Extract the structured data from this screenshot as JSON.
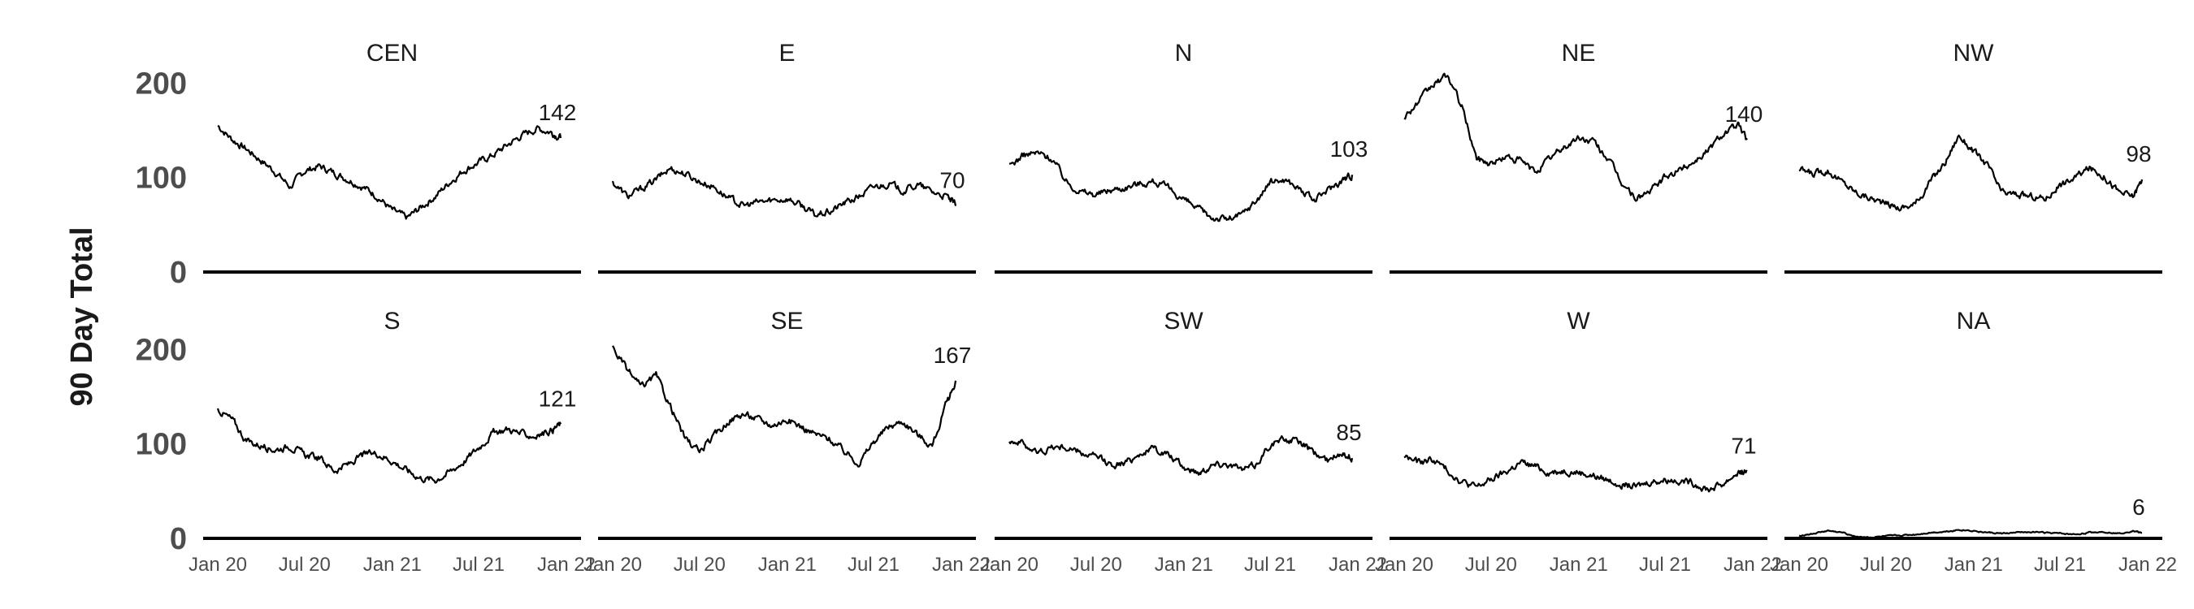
{
  "chart_data": {
    "type": "line",
    "ylabel": "90 Day Total",
    "xlabel": "",
    "ylim": [
      0,
      215
    ],
    "yticks": [
      0,
      100,
      200
    ],
    "xticks": [
      "Jan 20",
      "Jul 20",
      "Jan 21",
      "Jul 21",
      "Jan 22"
    ],
    "x_range": [
      "2020-01-01",
      "2022-01-01"
    ],
    "grid": false,
    "legend": "none",
    "panels": [
      {
        "name": "CEN",
        "end_label": "142",
        "points": [
          [
            "2020-01-01",
            155
          ],
          [
            "2020-02-01",
            140
          ],
          [
            "2020-03-01",
            130
          ],
          [
            "2020-04-01",
            118
          ],
          [
            "2020-05-01",
            106
          ],
          [
            "2020-06-01",
            90
          ],
          [
            "2020-07-01",
            107
          ],
          [
            "2020-08-01",
            112
          ],
          [
            "2020-09-01",
            105
          ],
          [
            "2020-10-01",
            98
          ],
          [
            "2020-11-01",
            90
          ],
          [
            "2020-12-01",
            80
          ],
          [
            "2021-01-01",
            65
          ],
          [
            "2021-02-01",
            57
          ],
          [
            "2021-03-01",
            68
          ],
          [
            "2021-04-01",
            80
          ],
          [
            "2021-05-01",
            95
          ],
          [
            "2021-06-01",
            108
          ],
          [
            "2021-07-01",
            116
          ],
          [
            "2021-08-01",
            124
          ],
          [
            "2021-09-01",
            135
          ],
          [
            "2021-10-01",
            145
          ],
          [
            "2021-11-01",
            152
          ],
          [
            "2021-12-01",
            148
          ],
          [
            "2021-12-20",
            142
          ]
        ]
      },
      {
        "name": "E",
        "end_label": "70",
        "points": [
          [
            "2020-01-01",
            95
          ],
          [
            "2020-02-01",
            80
          ],
          [
            "2020-03-01",
            88
          ],
          [
            "2020-04-01",
            98
          ],
          [
            "2020-05-01",
            110
          ],
          [
            "2020-06-01",
            104
          ],
          [
            "2020-07-01",
            96
          ],
          [
            "2020-08-01",
            90
          ],
          [
            "2020-09-01",
            78
          ],
          [
            "2020-10-01",
            70
          ],
          [
            "2020-11-01",
            74
          ],
          [
            "2020-12-01",
            76
          ],
          [
            "2021-01-01",
            78
          ],
          [
            "2021-02-01",
            70
          ],
          [
            "2021-03-01",
            60
          ],
          [
            "2021-04-01",
            64
          ],
          [
            "2021-05-01",
            73
          ],
          [
            "2021-06-01",
            80
          ],
          [
            "2021-07-01",
            90
          ],
          [
            "2021-08-01",
            94
          ],
          [
            "2021-09-01",
            86
          ],
          [
            "2021-10-01",
            92
          ],
          [
            "2021-11-01",
            85
          ],
          [
            "2021-12-01",
            80
          ],
          [
            "2021-12-20",
            70
          ]
        ]
      },
      {
        "name": "N",
        "end_label": "103",
        "points": [
          [
            "2020-01-01",
            112
          ],
          [
            "2020-02-01",
            124
          ],
          [
            "2020-03-01",
            126
          ],
          [
            "2020-04-01",
            120
          ],
          [
            "2020-05-01",
            95
          ],
          [
            "2020-06-01",
            85
          ],
          [
            "2020-07-01",
            82
          ],
          [
            "2020-08-01",
            87
          ],
          [
            "2020-09-01",
            90
          ],
          [
            "2020-10-01",
            94
          ],
          [
            "2020-11-01",
            96
          ],
          [
            "2020-12-01",
            88
          ],
          [
            "2021-01-01",
            77
          ],
          [
            "2021-02-01",
            66
          ],
          [
            "2021-03-01",
            58
          ],
          [
            "2021-04-01",
            56
          ],
          [
            "2021-05-01",
            60
          ],
          [
            "2021-06-01",
            75
          ],
          [
            "2021-07-01",
            95
          ],
          [
            "2021-08-01",
            98
          ],
          [
            "2021-09-01",
            88
          ],
          [
            "2021-10-01",
            75
          ],
          [
            "2021-11-01",
            88
          ],
          [
            "2021-12-01",
            98
          ],
          [
            "2021-12-20",
            103
          ]
        ]
      },
      {
        "name": "NE",
        "end_label": "140",
        "points": [
          [
            "2020-01-01",
            165
          ],
          [
            "2020-02-01",
            180
          ],
          [
            "2020-03-01",
            198
          ],
          [
            "2020-04-01",
            208
          ],
          [
            "2020-05-01",
            175
          ],
          [
            "2020-06-01",
            120
          ],
          [
            "2020-07-01",
            115
          ],
          [
            "2020-08-01",
            122
          ],
          [
            "2020-09-01",
            118
          ],
          [
            "2020-10-01",
            106
          ],
          [
            "2020-11-01",
            120
          ],
          [
            "2020-12-01",
            132
          ],
          [
            "2021-01-01",
            142
          ],
          [
            "2021-02-01",
            138
          ],
          [
            "2021-03-01",
            122
          ],
          [
            "2021-04-01",
            95
          ],
          [
            "2021-05-01",
            78
          ],
          [
            "2021-06-01",
            86
          ],
          [
            "2021-07-01",
            100
          ],
          [
            "2021-08-01",
            108
          ],
          [
            "2021-09-01",
            118
          ],
          [
            "2021-10-01",
            130
          ],
          [
            "2021-11-01",
            148
          ],
          [
            "2021-12-01",
            155
          ],
          [
            "2021-12-20",
            140
          ]
        ]
      },
      {
        "name": "NW",
        "end_label": "98",
        "points": [
          [
            "2020-01-01",
            108
          ],
          [
            "2020-02-01",
            104
          ],
          [
            "2020-03-01",
            108
          ],
          [
            "2020-04-01",
            95
          ],
          [
            "2020-05-01",
            84
          ],
          [
            "2020-06-01",
            78
          ],
          [
            "2020-07-01",
            72
          ],
          [
            "2020-08-01",
            68
          ],
          [
            "2020-09-01",
            72
          ],
          [
            "2020-10-01",
            95
          ],
          [
            "2020-11-01",
            115
          ],
          [
            "2020-12-01",
            145
          ],
          [
            "2021-01-01",
            128
          ],
          [
            "2021-02-01",
            112
          ],
          [
            "2021-03-01",
            84
          ],
          [
            "2021-04-01",
            82
          ],
          [
            "2021-05-01",
            80
          ],
          [
            "2021-06-01",
            78
          ],
          [
            "2021-07-01",
            92
          ],
          [
            "2021-08-01",
            100
          ],
          [
            "2021-09-01",
            110
          ],
          [
            "2021-10-01",
            102
          ],
          [
            "2021-11-01",
            85
          ],
          [
            "2021-12-01",
            80
          ],
          [
            "2021-12-20",
            98
          ]
        ]
      },
      {
        "name": "S",
        "end_label": "121",
        "points": [
          [
            "2020-01-01",
            137
          ],
          [
            "2020-02-01",
            125
          ],
          [
            "2020-03-01",
            103
          ],
          [
            "2020-04-01",
            98
          ],
          [
            "2020-05-01",
            94
          ],
          [
            "2020-06-01",
            98
          ],
          [
            "2020-07-01",
            88
          ],
          [
            "2020-08-01",
            85
          ],
          [
            "2020-09-01",
            72
          ],
          [
            "2020-10-01",
            78
          ],
          [
            "2020-11-01",
            88
          ],
          [
            "2020-12-01",
            90
          ],
          [
            "2021-01-01",
            82
          ],
          [
            "2021-02-01",
            72
          ],
          [
            "2021-03-01",
            64
          ],
          [
            "2021-04-01",
            62
          ],
          [
            "2021-05-01",
            70
          ],
          [
            "2021-06-01",
            82
          ],
          [
            "2021-07-01",
            96
          ],
          [
            "2021-08-01",
            112
          ],
          [
            "2021-09-01",
            116
          ],
          [
            "2021-10-01",
            110
          ],
          [
            "2021-11-01",
            108
          ],
          [
            "2021-12-01",
            115
          ],
          [
            "2021-12-20",
            121
          ]
        ]
      },
      {
        "name": "SE",
        "end_label": "167",
        "points": [
          [
            "2020-01-01",
            202
          ],
          [
            "2020-02-01",
            178
          ],
          [
            "2020-03-01",
            160
          ],
          [
            "2020-04-01",
            172
          ],
          [
            "2020-05-01",
            140
          ],
          [
            "2020-06-01",
            105
          ],
          [
            "2020-07-01",
            92
          ],
          [
            "2020-08-01",
            108
          ],
          [
            "2020-09-01",
            125
          ],
          [
            "2020-10-01",
            132
          ],
          [
            "2020-11-01",
            126
          ],
          [
            "2020-12-01",
            120
          ],
          [
            "2021-01-01",
            126
          ],
          [
            "2021-02-01",
            118
          ],
          [
            "2021-03-01",
            110
          ],
          [
            "2021-04-01",
            105
          ],
          [
            "2021-05-01",
            92
          ],
          [
            "2021-06-01",
            80
          ],
          [
            "2021-07-01",
            102
          ],
          [
            "2021-08-01",
            118
          ],
          [
            "2021-09-01",
            124
          ],
          [
            "2021-10-01",
            110
          ],
          [
            "2021-11-01",
            98
          ],
          [
            "2021-12-01",
            142
          ],
          [
            "2021-12-20",
            167
          ]
        ]
      },
      {
        "name": "SW",
        "end_label": "85",
        "points": [
          [
            "2020-01-01",
            105
          ],
          [
            "2020-02-01",
            100
          ],
          [
            "2020-03-01",
            90
          ],
          [
            "2020-04-01",
            97
          ],
          [
            "2020-05-01",
            96
          ],
          [
            "2020-06-01",
            90
          ],
          [
            "2020-07-01",
            86
          ],
          [
            "2020-08-01",
            78
          ],
          [
            "2020-09-01",
            80
          ],
          [
            "2020-10-01",
            90
          ],
          [
            "2020-11-01",
            95
          ],
          [
            "2020-12-01",
            88
          ],
          [
            "2021-01-01",
            75
          ],
          [
            "2021-02-01",
            70
          ],
          [
            "2021-03-01",
            78
          ],
          [
            "2021-04-01",
            80
          ],
          [
            "2021-05-01",
            72
          ],
          [
            "2021-06-01",
            78
          ],
          [
            "2021-07-01",
            100
          ],
          [
            "2021-08-01",
            105
          ],
          [
            "2021-09-01",
            102
          ],
          [
            "2021-10-01",
            90
          ],
          [
            "2021-11-01",
            82
          ],
          [
            "2021-12-01",
            92
          ],
          [
            "2021-12-20",
            85
          ]
        ]
      },
      {
        "name": "W",
        "end_label": "71",
        "points": [
          [
            "2020-01-01",
            87
          ],
          [
            "2020-02-01",
            80
          ],
          [
            "2020-03-01",
            84
          ],
          [
            "2020-04-01",
            72
          ],
          [
            "2020-05-01",
            60
          ],
          [
            "2020-06-01",
            54
          ],
          [
            "2020-07-01",
            62
          ],
          [
            "2020-08-01",
            70
          ],
          [
            "2020-09-01",
            80
          ],
          [
            "2020-10-01",
            76
          ],
          [
            "2020-11-01",
            70
          ],
          [
            "2020-12-01",
            72
          ],
          [
            "2021-01-01",
            70
          ],
          [
            "2021-02-01",
            66
          ],
          [
            "2021-03-01",
            62
          ],
          [
            "2021-04-01",
            58
          ],
          [
            "2021-05-01",
            54
          ],
          [
            "2021-06-01",
            60
          ],
          [
            "2021-07-01",
            62
          ],
          [
            "2021-08-01",
            62
          ],
          [
            "2021-09-01",
            58
          ],
          [
            "2021-10-01",
            52
          ],
          [
            "2021-11-01",
            58
          ],
          [
            "2021-12-01",
            70
          ],
          [
            "2021-12-20",
            71
          ]
        ]
      },
      {
        "name": "NA",
        "end_label": "6",
        "points": [
          [
            "2020-01-01",
            3
          ],
          [
            "2020-02-01",
            5
          ],
          [
            "2020-03-01",
            8
          ],
          [
            "2020-04-01",
            6
          ],
          [
            "2020-05-01",
            2
          ],
          [
            "2020-06-01",
            1
          ],
          [
            "2020-07-01",
            2
          ],
          [
            "2020-08-01",
            3
          ],
          [
            "2020-09-01",
            4
          ],
          [
            "2020-10-01",
            6
          ],
          [
            "2020-11-01",
            7
          ],
          [
            "2020-12-01",
            9
          ],
          [
            "2021-01-01",
            8
          ],
          [
            "2021-02-01",
            6
          ],
          [
            "2021-03-01",
            5
          ],
          [
            "2021-04-01",
            6
          ],
          [
            "2021-05-01",
            7
          ],
          [
            "2021-06-01",
            6
          ],
          [
            "2021-07-01",
            5
          ],
          [
            "2021-08-01",
            4
          ],
          [
            "2021-09-01",
            6
          ],
          [
            "2021-10-01",
            7
          ],
          [
            "2021-11-01",
            5
          ],
          [
            "2021-12-01",
            8
          ],
          [
            "2021-12-20",
            6
          ]
        ]
      }
    ]
  }
}
